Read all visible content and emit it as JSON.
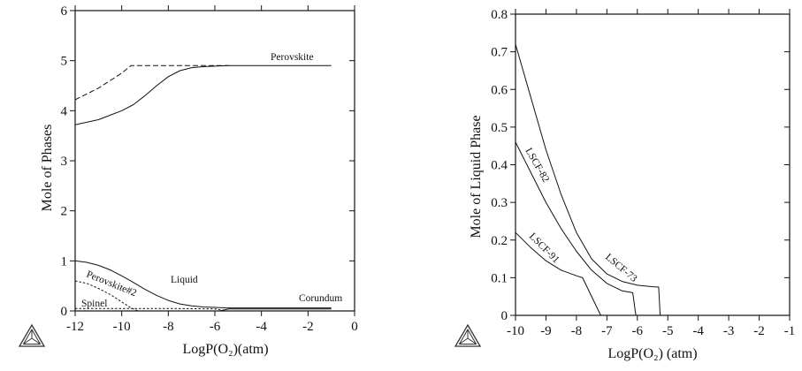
{
  "chart_data": [
    {
      "type": "line",
      "xlabel": "LogP(O₂)(atm)",
      "ylabel": "Mole of Phases",
      "xlim": [
        -12,
        0
      ],
      "ylim": [
        0,
        6
      ],
      "xticks": [
        "-12",
        "-10",
        "-8",
        "-6",
        "-4",
        "-2",
        "0"
      ],
      "yticks": [
        "0",
        "1",
        "2",
        "3",
        "4",
        "5",
        "6"
      ],
      "series": [
        {
          "name": "Perovskite",
          "style": "solid",
          "label": "Perovskite",
          "x": [
            -12,
            -11,
            -10,
            -9.5,
            -9,
            -8.5,
            -8,
            -7.5,
            -7,
            -6.5,
            -6,
            -5.5,
            -5,
            -4,
            -3,
            -2,
            -1
          ],
          "y": [
            3.72,
            3.82,
            4.0,
            4.12,
            4.3,
            4.5,
            4.68,
            4.8,
            4.86,
            4.88,
            4.89,
            4.9,
            4.9,
            4.9,
            4.9,
            4.9,
            4.9
          ]
        },
        {
          "name": "Perovskite (dashed)",
          "style": "dashed",
          "label": "",
          "x": [
            -12,
            -11,
            -10,
            -9.6,
            -8,
            -6,
            -5.4
          ],
          "y": [
            4.22,
            4.45,
            4.75,
            4.9,
            4.9,
            4.9,
            4.9
          ]
        },
        {
          "name": "Liquid",
          "style": "solid",
          "label": "Liquid",
          "x": [
            -12,
            -11.5,
            -11,
            -10.5,
            -10,
            -9.5,
            -9,
            -8.5,
            -8,
            -7.5,
            -7,
            -6.5,
            -6,
            -5.5,
            -5,
            -4,
            -3,
            -2,
            -1
          ],
          "y": [
            1.0,
            0.97,
            0.91,
            0.82,
            0.7,
            0.57,
            0.43,
            0.31,
            0.21,
            0.14,
            0.1,
            0.08,
            0.07,
            0.06,
            0.06,
            0.06,
            0.06,
            0.06,
            0.06
          ]
        },
        {
          "name": "Perovskite#2",
          "style": "dashed",
          "label": "Perovskite#2",
          "x": [
            -12,
            -11.5,
            -11,
            -10.5,
            -10,
            -9.6,
            -9.3
          ],
          "y": [
            0.6,
            0.55,
            0.45,
            0.33,
            0.18,
            0.06,
            0.0
          ]
        },
        {
          "name": "Spinel",
          "style": "dashed",
          "label": "Spinel",
          "x": [
            -12,
            -10,
            -8,
            -6,
            -5.5
          ],
          "y": [
            0.05,
            0.05,
            0.05,
            0.04,
            0.0
          ]
        },
        {
          "name": "Corundum",
          "style": "solid",
          "label": "Corundum",
          "x": [
            -5.8,
            -5.4,
            -4,
            -3,
            -2,
            -1
          ],
          "y": [
            0.0,
            0.04,
            0.04,
            0.04,
            0.04,
            0.04
          ]
        }
      ]
    },
    {
      "type": "line",
      "xlabel": "LogP(O₂) (atm)",
      "ylabel": "Mole of Liquid Phase",
      "xlim": [
        -10,
        -1
      ],
      "ylim": [
        0,
        0.8
      ],
      "xticks": [
        "-10",
        "-9",
        "-8",
        "-7",
        "-6",
        "-5",
        "-4",
        "-3",
        "-2",
        "-1"
      ],
      "yticks": [
        "0",
        "0.1",
        "0.2",
        "0.3",
        "0.4",
        "0.5",
        "0.6",
        "0.7",
        "0.8"
      ],
      "series": [
        {
          "name": "LSCF-73",
          "label": "LSCF-73",
          "x": [
            -10,
            -9.5,
            -9,
            -8.5,
            -8,
            -7.5,
            -7,
            -6.5,
            -6,
            -5.5,
            -5.3,
            -5.25
          ],
          "y": [
            0.72,
            0.58,
            0.44,
            0.32,
            0.22,
            0.15,
            0.11,
            0.09,
            0.08,
            0.076,
            0.075,
            0.0
          ]
        },
        {
          "name": "LSCF-82",
          "label": "LSCF-82",
          "x": [
            -10,
            -9.5,
            -9,
            -8.5,
            -8,
            -7.5,
            -7,
            -6.5,
            -6.15,
            -6.05
          ],
          "y": [
            0.46,
            0.38,
            0.3,
            0.23,
            0.17,
            0.12,
            0.085,
            0.065,
            0.06,
            0.0
          ]
        },
        {
          "name": "LSCF-91",
          "label": "LSCF-91",
          "x": [
            -10,
            -9.5,
            -9,
            -8.5,
            -8,
            -7.8,
            -7.2
          ],
          "y": [
            0.22,
            0.18,
            0.145,
            0.12,
            0.105,
            0.1,
            0.0
          ]
        }
      ]
    }
  ]
}
